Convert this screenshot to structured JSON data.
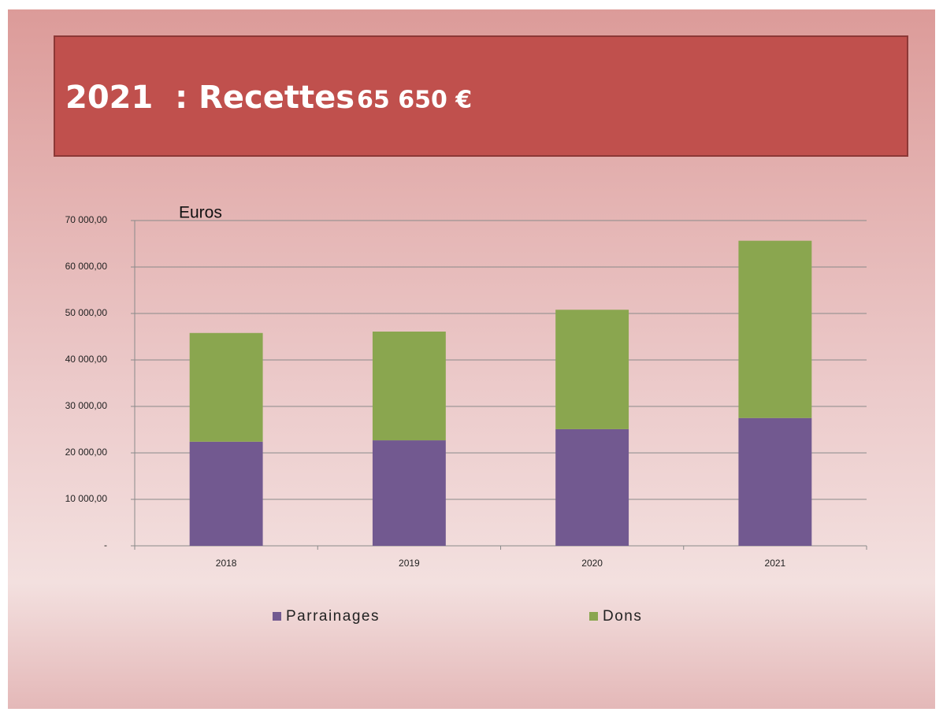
{
  "chart_data": {
    "type": "bar",
    "stacked": true,
    "title": "2021  : Recettes",
    "title_amount": "65 650 €",
    "y_label": "Euros",
    "categories": [
      "2018",
      "2019",
      "2020",
      "2021"
    ],
    "series": [
      {
        "name": "Parrainages",
        "color": "#725990",
        "values": [
          22400,
          22700,
          25100,
          27500
        ]
      },
      {
        "name": "Dons",
        "color": "#8aa64f",
        "values": [
          23400,
          23400,
          25700,
          38150
        ]
      }
    ],
    "ylim": [
      0,
      70000
    ],
    "yticks": [
      {
        "value": 0,
        "label": "-"
      },
      {
        "value": 10000,
        "label": "10 000,00"
      },
      {
        "value": 20000,
        "label": "20 000,00"
      },
      {
        "value": 30000,
        "label": "30 000,00"
      },
      {
        "value": 40000,
        "label": "40 000,00"
      },
      {
        "value": 50000,
        "label": "50 000,00"
      },
      {
        "value": 60000,
        "label": "60 000,00"
      },
      {
        "value": 70000,
        "label": "70 000,00"
      }
    ],
    "grid": true,
    "legend": "bottom"
  }
}
